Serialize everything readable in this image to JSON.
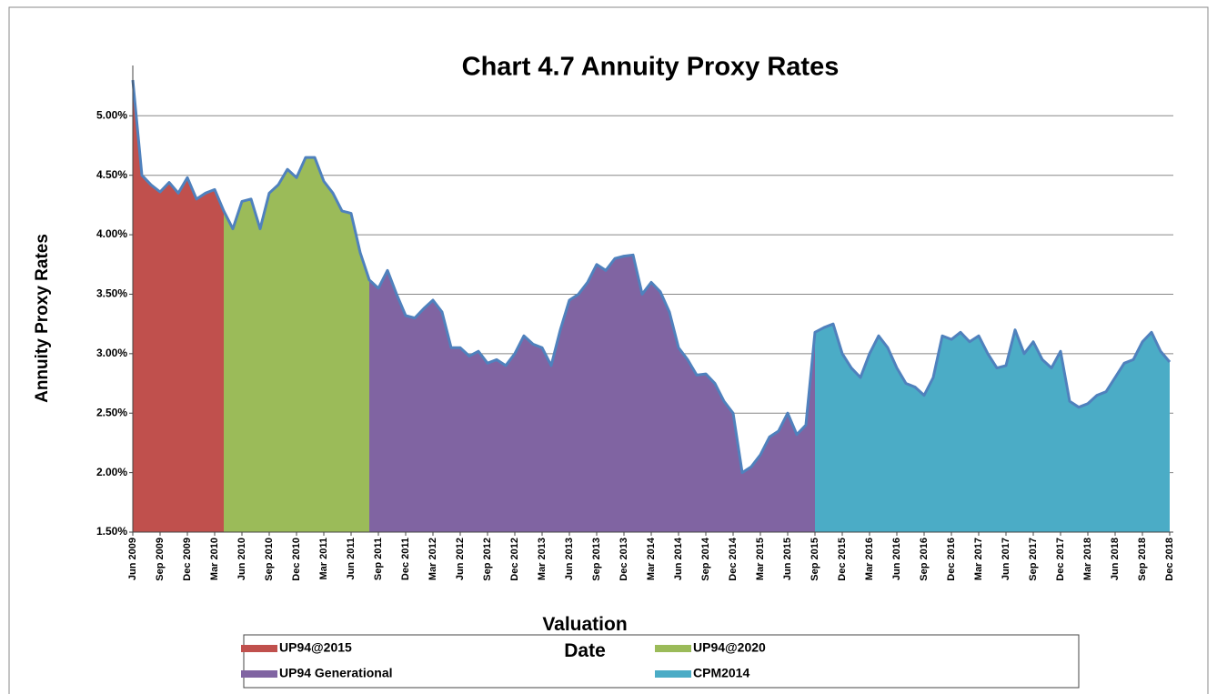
{
  "chart_data": {
    "type": "area",
    "title": "Chart 4.7 Annuity Proxy Rates",
    "y_label": "Annuity Proxy Rates",
    "x_label": "Valuation Date",
    "categories": [
      "Jun 2009",
      null,
      null,
      "Sep 2009",
      null,
      null,
      "Dec 2009",
      null,
      null,
      "Mar 2010",
      null,
      null,
      "Jun 2010",
      null,
      null,
      "Sep 2010",
      null,
      null,
      "Dec 2010",
      null,
      null,
      "Mar 2011",
      null,
      null,
      "Jun 2011",
      null,
      null,
      "Sep 2011",
      null,
      null,
      "Dec 2011",
      null,
      null,
      "Mar 2012",
      null,
      null,
      "Jun 2012",
      null,
      null,
      "Sep 2012",
      null,
      null,
      "Dec 2012",
      null,
      null,
      "Mar 2013",
      null,
      null,
      "Jun 2013",
      null,
      null,
      "Sep 2013",
      null,
      null,
      "Dec 2013",
      null,
      null,
      "Mar 2014",
      null,
      null,
      "Jun 2014",
      null,
      null,
      "Sep 2014",
      null,
      null,
      "Dec 2014",
      null,
      null,
      "Mar 2015",
      null,
      null,
      "Jun 2015",
      null,
      null,
      "Sep 2015",
      null,
      null,
      "Dec 2015",
      null,
      null,
      "Mar 2016",
      null,
      null,
      "Jun 2016",
      null,
      null,
      "Sep 2016",
      null,
      null,
      "Dec 2016",
      null,
      null,
      "Mar 2017",
      null,
      null,
      "Jun 2017",
      null,
      null,
      "Sep 2017",
      null,
      null,
      "Dec 2017",
      null,
      null,
      "Mar 2018",
      null,
      null,
      "Jun 2018",
      null,
      null,
      "Sep 2018",
      null,
      null,
      "Dec 2018"
    ],
    "series": [
      {
        "name": "UP94@2015",
        "color": "#c0504d",
        "values": [
          5.3,
          4.5,
          4.42,
          4.36,
          4.44,
          4.35,
          4.48,
          4.3,
          4.35,
          4.38,
          null,
          null,
          null,
          null,
          null,
          null,
          null,
          null,
          null,
          null,
          null,
          null,
          null,
          null,
          null,
          null,
          null,
          null,
          null,
          null,
          null,
          null,
          null,
          null,
          null,
          null,
          null,
          null,
          null,
          null,
          null,
          null,
          null,
          null,
          null,
          null,
          null,
          null,
          null,
          null,
          null,
          null,
          null,
          null,
          null,
          null,
          null,
          null,
          null,
          null,
          null,
          null,
          null,
          null,
          null,
          null,
          null,
          null,
          null,
          null,
          null,
          null,
          null,
          null,
          null,
          null,
          null,
          null,
          null,
          null,
          null,
          null,
          null,
          null,
          null,
          null,
          null,
          null,
          null,
          null,
          null,
          null,
          null,
          null,
          null,
          null,
          null,
          null,
          null,
          null,
          null,
          null,
          null,
          null,
          null,
          null,
          null,
          null,
          null,
          null,
          null,
          null,
          null,
          null,
          null
        ]
      },
      {
        "name": "UP94@2020",
        "color": "#9bbb59",
        "values": [
          null,
          null,
          null,
          null,
          null,
          null,
          null,
          null,
          null,
          null,
          4.2,
          4.05,
          4.28,
          4.3,
          4.05,
          4.35,
          4.42,
          4.55,
          4.48,
          4.65,
          4.65,
          4.45,
          4.35,
          4.2,
          4.18,
          3.85,
          null,
          null,
          null,
          null,
          null,
          null,
          null,
          null,
          null,
          null,
          null,
          null,
          null,
          null,
          null,
          null,
          null,
          null,
          null,
          null,
          null,
          null,
          null,
          null,
          null,
          null,
          null,
          null,
          null,
          null,
          null,
          null,
          null,
          null,
          null,
          null,
          null,
          null,
          null,
          null,
          null,
          null,
          null,
          null,
          null,
          null,
          null,
          null,
          null,
          null,
          null,
          null,
          null,
          null,
          null,
          null,
          null,
          null,
          null,
          null,
          null,
          null,
          null,
          null,
          null,
          null,
          null,
          null,
          null,
          null,
          null,
          null,
          null,
          null,
          null,
          null,
          null,
          null,
          null,
          null,
          null,
          null,
          null,
          null,
          null,
          null,
          null,
          null,
          null
        ]
      },
      {
        "name": "UP94 Generational",
        "color": "#8064a2",
        "values": [
          null,
          null,
          null,
          null,
          null,
          null,
          null,
          null,
          null,
          null,
          null,
          null,
          null,
          null,
          null,
          null,
          null,
          null,
          null,
          null,
          null,
          null,
          null,
          null,
          null,
          null,
          3.62,
          3.55,
          3.7,
          3.5,
          3.32,
          3.3,
          3.38,
          3.45,
          3.35,
          3.05,
          3.05,
          2.98,
          3.02,
          2.92,
          2.95,
          2.9,
          3.0,
          3.15,
          3.08,
          3.05,
          2.9,
          3.2,
          3.45,
          3.5,
          3.6,
          3.75,
          3.7,
          3.8,
          3.82,
          3.83,
          3.5,
          3.6,
          3.52,
          3.35,
          3.05,
          2.95,
          2.82,
          2.83,
          2.75,
          2.6,
          2.5,
          2.0,
          2.05,
          2.15,
          2.3,
          2.35,
          2.5,
          2.32,
          2.4,
          null,
          null,
          null,
          null,
          null,
          null,
          null,
          null,
          null,
          null,
          null,
          null,
          null,
          null,
          null,
          null,
          null,
          null,
          null,
          null,
          null,
          null,
          null,
          null,
          null,
          null,
          null,
          null,
          null,
          null,
          null,
          null,
          null,
          null,
          null,
          null,
          null,
          null,
          null,
          null
        ]
      },
      {
        "name": "CPM2014",
        "color": "#4bacc6",
        "values": [
          null,
          null,
          null,
          null,
          null,
          null,
          null,
          null,
          null,
          null,
          null,
          null,
          null,
          null,
          null,
          null,
          null,
          null,
          null,
          null,
          null,
          null,
          null,
          null,
          null,
          null,
          null,
          null,
          null,
          null,
          null,
          null,
          null,
          null,
          null,
          null,
          null,
          null,
          null,
          null,
          null,
          null,
          null,
          null,
          null,
          null,
          null,
          null,
          null,
          null,
          null,
          null,
          null,
          null,
          null,
          null,
          null,
          null,
          null,
          null,
          null,
          null,
          null,
          null,
          null,
          null,
          null,
          null,
          null,
          null,
          null,
          null,
          null,
          null,
          null,
          3.18,
          3.22,
          3.25,
          3.0,
          2.88,
          2.8,
          3.0,
          3.15,
          3.05,
          2.88,
          2.75,
          2.72,
          2.65,
          2.8,
          3.15,
          3.12,
          3.18,
          3.1,
          3.15,
          3.0,
          2.88,
          2.9,
          3.2,
          3.0,
          3.1,
          2.95,
          2.88,
          3.02,
          2.6,
          2.55,
          2.58,
          2.65,
          2.68,
          2.8,
          2.92,
          2.95,
          3.1,
          3.18,
          3.02,
          2.93
        ]
      }
    ],
    "line_color": "#4f81bd",
    "ylim": [
      1.5,
      5.4
    ],
    "yticks": [
      {
        "value": 1.5,
        "label": "1.50%"
      },
      {
        "value": 2,
        "label": "2.00%"
      },
      {
        "value": 2.5,
        "label": "2.50%"
      },
      {
        "value": 3,
        "label": "3.00%"
      },
      {
        "value": 3.5,
        "label": "3.50%"
      },
      {
        "value": 4,
        "label": "4.00%"
      },
      {
        "value": 4.5,
        "label": "4.50%"
      },
      {
        "value": 5,
        "label": "5.00%"
      }
    ],
    "grid": true,
    "legend": "bottom"
  }
}
